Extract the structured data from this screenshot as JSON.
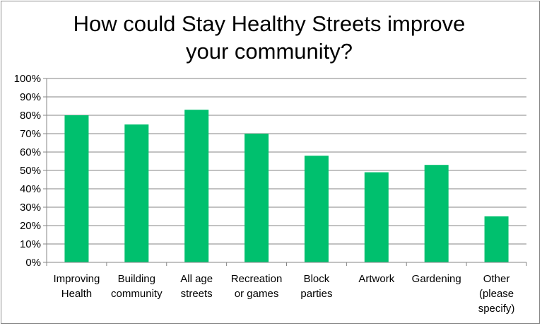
{
  "chart_data": {
    "type": "bar",
    "title_lines": [
      "How could Stay Healthy Streets improve",
      "your community?"
    ],
    "categories": [
      [
        "Improving",
        "Health"
      ],
      [
        "Building",
        "community"
      ],
      [
        "All age",
        "streets"
      ],
      [
        "Recreation",
        "or games"
      ],
      [
        "Block",
        "parties"
      ],
      [
        "Artwork"
      ],
      [
        "Gardening"
      ],
      [
        "Other",
        "(please",
        "specify)"
      ]
    ],
    "values": [
      80,
      75,
      83,
      70,
      58,
      49,
      53,
      25
    ],
    "ylim": [
      0,
      100
    ],
    "ytick_step": 10,
    "ytick_labels": [
      "0%",
      "10%",
      "20%",
      "30%",
      "40%",
      "50%",
      "60%",
      "70%",
      "80%",
      "90%",
      "100%"
    ],
    "bar_color": "#00c06e",
    "grid": true,
    "legend": "none"
  }
}
